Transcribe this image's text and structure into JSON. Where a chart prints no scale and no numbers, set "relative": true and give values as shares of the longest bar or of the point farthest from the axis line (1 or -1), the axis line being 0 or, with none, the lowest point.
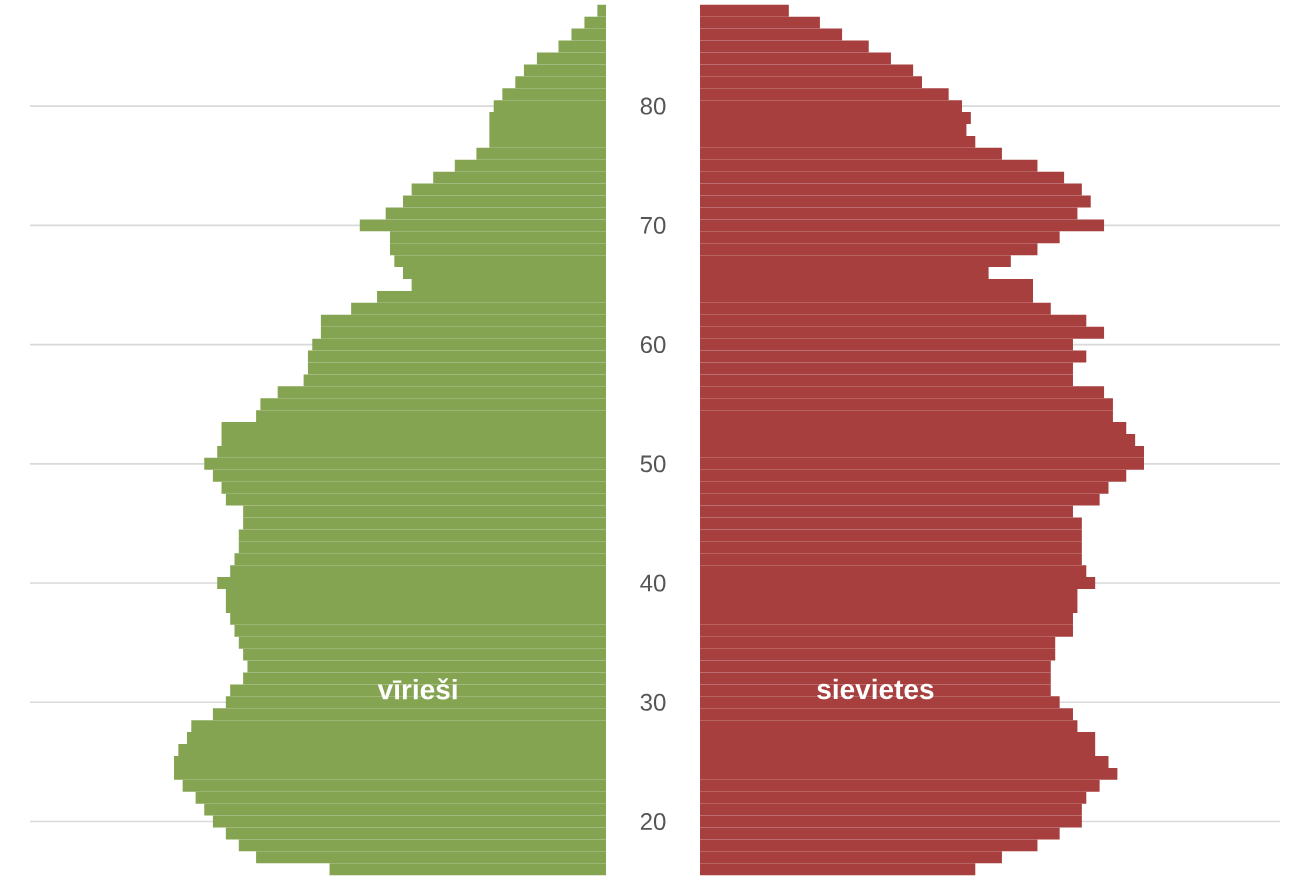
{
  "chart_data": [
    {
      "type": "bar",
      "orientation": "horizontal",
      "relative": true,
      "grid": "y",
      "tick_labels": false,
      "categories": [
        null,
        null,
        null,
        null,
        null,
        null,
        null,
        null,
        "80",
        null,
        null,
        null,
        null,
        null,
        null,
        null,
        null,
        null,
        "70",
        null,
        null,
        null,
        null,
        null,
        null,
        null,
        null,
        null,
        "60",
        null,
        null,
        null,
        null,
        null,
        null,
        null,
        null,
        null,
        "50",
        null,
        null,
        null,
        null,
        null,
        null,
        null,
        null,
        null,
        "40",
        null,
        null,
        null,
        null,
        null,
        null,
        null,
        null,
        null,
        "30",
        null,
        null,
        null,
        null,
        null,
        null,
        null,
        null,
        null,
        "20",
        null,
        null,
        null,
        null
      ],
      "series": [
        {
          "name": "vīrieši",
          "color": "#84a452",
          "values": [
            -0.02,
            -0.05,
            -0.08,
            -0.11,
            -0.16,
            -0.19,
            -0.21,
            -0.24,
            -0.26,
            -0.27,
            -0.27,
            -0.27,
            -0.3,
            -0.35,
            -0.4,
            -0.45,
            -0.47,
            -0.51,
            -0.57,
            -0.5,
            -0.5,
            -0.49,
            -0.47,
            -0.45,
            -0.53,
            -0.59,
            -0.66,
            -0.66,
            -0.68,
            -0.69,
            -0.69,
            -0.7,
            -0.76,
            -0.8,
            -0.81,
            -0.89,
            -0.89,
            -0.9,
            -0.93,
            -0.91,
            -0.89,
            -0.88,
            -0.84,
            -0.84,
            -0.85,
            -0.85,
            -0.86,
            -0.87,
            -0.9,
            -0.88,
            -0.88,
            -0.87,
            -0.86,
            -0.85,
            -0.84,
            -0.83,
            -0.84,
            -0.87,
            -0.88,
            -0.91,
            -0.96,
            -0.97,
            -0.99,
            -1,
            -1,
            -0.98,
            -0.95,
            -0.93,
            -0.91,
            -0.88,
            -0.85,
            -0.81,
            -0.64
          ]
        }
      ]
    },
    {
      "type": "bar",
      "orientation": "horizontal",
      "relative": true,
      "grid": "y",
      "tick_labels": "y",
      "categories": [
        null,
        null,
        null,
        null,
        null,
        null,
        null,
        null,
        "80",
        null,
        null,
        null,
        null,
        null,
        null,
        null,
        null,
        null,
        "70",
        null,
        null,
        null,
        null,
        null,
        null,
        null,
        null,
        null,
        "60",
        null,
        null,
        null,
        null,
        null,
        null,
        null,
        null,
        null,
        "50",
        null,
        null,
        null,
        null,
        null,
        null,
        null,
        null,
        null,
        "40",
        null,
        null,
        null,
        null,
        null,
        null,
        null,
        null,
        null,
        "30",
        null,
        null,
        null,
        null,
        null,
        null,
        null,
        null,
        null,
        "20",
        null,
        null,
        null,
        null
      ],
      "series": [
        {
          "name": "sievietes",
          "color": "#a63f3e",
          "values": [
            0.2,
            0.27,
            0.32,
            0.38,
            0.43,
            0.48,
            0.5,
            0.56,
            0.59,
            0.61,
            0.6,
            0.62,
            0.68,
            0.76,
            0.82,
            0.86,
            0.88,
            0.85,
            0.91,
            0.81,
            0.76,
            0.7,
            0.65,
            0.75,
            0.75,
            0.79,
            0.87,
            0.91,
            0.84,
            0.87,
            0.84,
            0.84,
            0.91,
            0.93,
            0.93,
            0.96,
            0.98,
            1,
            1,
            0.96,
            0.92,
            0.9,
            0.84,
            0.86,
            0.86,
            0.86,
            0.86,
            0.87,
            0.89,
            0.85,
            0.85,
            0.84,
            0.84,
            0.8,
            0.8,
            0.79,
            0.79,
            0.79,
            0.81,
            0.84,
            0.85,
            0.89,
            0.89,
            0.92,
            0.94,
            0.9,
            0.87,
            0.86,
            0.86,
            0.81,
            0.76,
            0.68,
            0.62
          ]
        }
      ]
    }
  ]
}
